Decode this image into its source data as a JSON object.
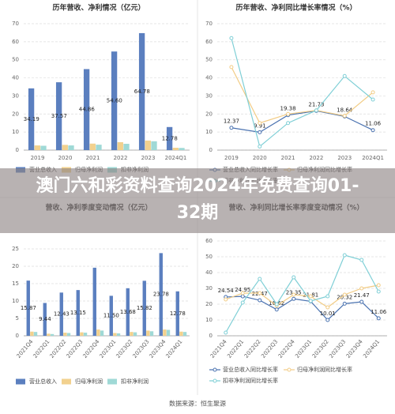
{
  "chart_data": [
    {
      "type": "bar",
      "title": "历年营收、净利情况（亿元）",
      "categories": [
        "2019",
        "2020",
        "2021",
        "2022",
        "2023",
        "2024Q1"
      ],
      "series": [
        {
          "name": "营业总收入",
          "color": "#5b7fbf",
          "values": [
            34.19,
            37.57,
            44.86,
            54.6,
            64.78,
            12.78
          ],
          "value_labels": [
            "34.19",
            "37.57",
            "44.86",
            "54.60",
            "64.78",
            "12.78"
          ]
        },
        {
          "name": "归母净利润",
          "color": "#f2d18e",
          "values": [
            2.6,
            2.9,
            3.6,
            4.4,
            5.3,
            1.3
          ]
        },
        {
          "name": "扣非净利润",
          "color": "#9fd9d6",
          "values": [
            2.4,
            2.6,
            3.0,
            3.5,
            4.9,
            1.2
          ]
        }
      ],
      "ylim": [
        0,
        70
      ],
      "yticks": [
        0,
        10,
        20,
        30,
        40,
        50,
        60,
        70
      ],
      "grid": true
    },
    {
      "type": "line",
      "title": "历年营收、净利同比增长率情况（%）",
      "categories": [
        "2019",
        "2020",
        "2021",
        "2022",
        "2023",
        "2024Q1"
      ],
      "series": [
        {
          "name": "营业总收入同比增长率",
          "color": "#4a72b0",
          "values": [
            12.37,
            9.91,
            19.38,
            21.73,
            18.64,
            11.06
          ]
        },
        {
          "name": "归母净利润同比增长率",
          "color": "#f2cc85",
          "values": [
            46,
            15,
            20,
            22,
            19,
            32
          ]
        },
        {
          "name": "扣非净利润同比增长率",
          "color": "#7fcfd6",
          "values": [
            62,
            2,
            15,
            22,
            41,
            28
          ]
        }
      ],
      "ylim": [
        0,
        70
      ],
      "yticks": [
        0,
        10,
        20,
        30,
        40,
        50,
        60,
        70
      ],
      "grid": true
    },
    {
      "type": "bar",
      "title": "营收、净利季度变动情况（亿元）",
      "categories": [
        "2021Q4",
        "2022Q1",
        "2022Q2",
        "2022Q3",
        "2022Q4",
        "2023Q1",
        "2023Q2",
        "2023Q3",
        "2023Q4",
        "2024Q1"
      ],
      "series": [
        {
          "name": "营业总收入",
          "color": "#5b7fbf",
          "values": [
            15.87,
            9.44,
            12.43,
            13.15,
            19.58,
            11.5,
            13.68,
            15.82,
            23.78,
            12.78
          ],
          "value_labels": [
            "15.87",
            "9.44",
            "12.43",
            "13.15",
            null,
            "11.50",
            "13.68",
            "15.82",
            "23.78",
            "12.78"
          ]
        },
        {
          "name": "归母净利润",
          "color": "#f2d18e",
          "values": [
            1.2,
            0.6,
            0.9,
            1.0,
            1.8,
            0.8,
            1.1,
            1.5,
            1.8,
            1.2
          ]
        },
        {
          "name": "扣非净利润",
          "color": "#9fd9d6",
          "values": [
            1.1,
            0.5,
            0.8,
            0.9,
            1.5,
            0.7,
            1.0,
            1.3,
            1.7,
            1.1
          ]
        }
      ],
      "ylim": [
        0,
        25
      ],
      "yticks": [
        0,
        5,
        10,
        15,
        20,
        25
      ],
      "grid": true
    },
    {
      "type": "line",
      "title": "营收、净利同比增长率季度变动情况（%）",
      "categories": [
        "2021Q4",
        "2022Q1",
        "2022Q2",
        "2022Q3",
        "2022Q4",
        "2023Q1",
        "2023Q2",
        "2023Q3",
        "2023Q4",
        "2024Q1"
      ],
      "series": [
        {
          "name": "营业总收入同比增长率",
          "color": "#4a72b0",
          "values": [
            24.54,
            24.95,
            22.47,
            16.62,
            23.35,
            21.81,
            10.01,
            20.32,
            21.47,
            11.06
          ]
        },
        {
          "name": "归母净利润同比增长率",
          "color": "#f2cc85",
          "values": [
            23,
            27,
            27,
            19,
            26,
            25,
            18,
            26,
            30,
            32
          ]
        },
        {
          "name": "扣非净利润同比增长率",
          "color": "#7fcfd6",
          "values": [
            2,
            21,
            36,
            20,
            37,
            22,
            25,
            51,
            48,
            28
          ]
        }
      ],
      "ylim": [
        0,
        60
      ],
      "yticks": [
        0,
        10,
        20,
        30,
        40,
        50,
        60
      ],
      "grid": true
    }
  ],
  "source": "数据来源：恒生聚源",
  "overlay": "澳门六和彩资料查询2024年免费查询01-32期"
}
